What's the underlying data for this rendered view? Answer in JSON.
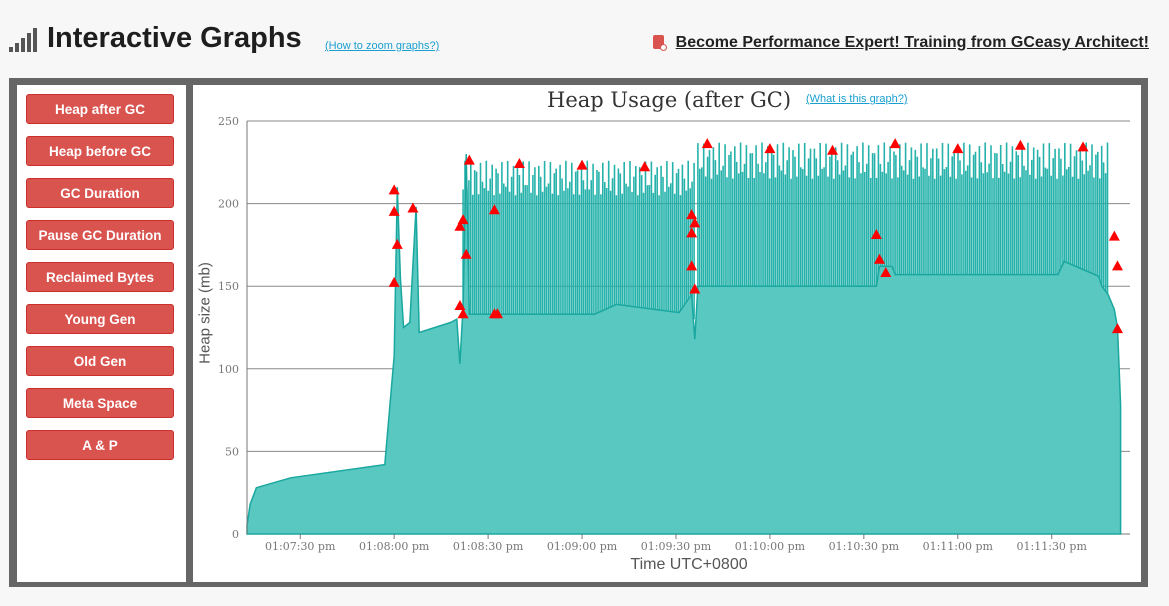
{
  "header": {
    "title": "Interactive Graphs",
    "zoom_link": "(How to zoom graphs?)",
    "promo_text": "Become Performance Expert! Training from GCeasy Architect!"
  },
  "sidebar": {
    "items": [
      {
        "label": "Heap after GC"
      },
      {
        "label": "Heap before GC"
      },
      {
        "label": "GC Duration"
      },
      {
        "label": "Pause GC Duration"
      },
      {
        "label": "Reclaimed Bytes"
      },
      {
        "label": "Young Gen"
      },
      {
        "label": "Old Gen"
      },
      {
        "label": "Meta Space"
      },
      {
        "label": "A & P"
      }
    ]
  },
  "chart": {
    "what_link": "(What is this graph?)"
  },
  "chart_data": {
    "type": "area",
    "title": "Heap Usage (after GC)",
    "xlabel": "Time UTC+0800",
    "ylabel": "Heap size (mb)",
    "xlim": [
      "01:07:13 pm",
      "01:11:55 pm"
    ],
    "ylim": [
      0,
      250
    ],
    "y_ticks": [
      0,
      50,
      100,
      150,
      200,
      250
    ],
    "x_ticks": [
      "01:07:30 pm",
      "01:08:00 pm",
      "01:08:30 pm",
      "01:09:00 pm",
      "01:09:30 pm",
      "01:10:00 pm",
      "01:10:30 pm",
      "01:11:00 pm",
      "01:11:30 pm"
    ],
    "grid": true,
    "series": [
      {
        "color": "#20b2aa",
        "points": [
          [
            "01:07:13 pm",
            5
          ],
          [
            "01:07:14 pm",
            18
          ],
          [
            "01:07:16 pm",
            28
          ],
          [
            "01:07:27 pm",
            34
          ],
          [
            "01:07:57 pm",
            42
          ],
          [
            "01:08:00 pm",
            108
          ],
          [
            "01:08:01 pm",
            210
          ],
          [
            "01:08:02 pm",
            155
          ],
          [
            "01:08:03 pm",
            125
          ],
          [
            "01:08:05 pm",
            128
          ],
          [
            "01:08:07 pm",
            198
          ],
          [
            "01:08:08 pm",
            122
          ],
          [
            "01:08:18 pm",
            128
          ],
          [
            "01:08:20 pm",
            130
          ],
          [
            "01:08:21 pm",
            103
          ],
          [
            "01:08:22 pm",
            138
          ],
          [
            "01:08:23 pm",
            230
          ],
          [
            "01:08:24 pm",
            133
          ],
          [
            "01:09:04 pm",
            133
          ],
          [
            "01:09:11 pm",
            139
          ],
          [
            "01:09:31 pm",
            134
          ],
          [
            "01:09:35 pm",
            145
          ],
          [
            "01:09:36 pm",
            118
          ],
          [
            "01:09:37 pm",
            150
          ],
          [
            "01:10:34 pm",
            150
          ],
          [
            "01:10:35 pm",
            162
          ],
          [
            "01:10:39 pm",
            162
          ],
          [
            "01:10:40 pm",
            157
          ],
          [
            "01:11:32 pm",
            157
          ],
          [
            "01:11:34 pm",
            165
          ],
          [
            "01:11:45 pm",
            156
          ],
          [
            "01:11:46 pm",
            150
          ],
          [
            "01:11:48 pm",
            145
          ],
          [
            "01:11:50 pm",
            136
          ],
          [
            "01:11:51 pm",
            125
          ],
          [
            "01:11:52 pm",
            78
          ]
        ],
        "peak_ranges": [
          {
            "from": "01:08:22 pm",
            "to": "01:09:36 pm",
            "min": 205,
            "max": 226
          },
          {
            "from": "01:09:37 pm",
            "to": "01:11:48 pm",
            "min": 215,
            "max": 237
          }
        ]
      }
    ],
    "markers": [
      [
        "01:08:00 pm",
        208
      ],
      [
        "01:08:00 pm",
        195
      ],
      [
        "01:08:01 pm",
        175
      ],
      [
        "01:08:00 pm",
        152
      ],
      [
        "01:08:06 pm",
        197
      ],
      [
        "01:08:21 pm",
        138
      ],
      [
        "01:08:21 pm",
        186
      ],
      [
        "01:08:22 pm",
        190
      ],
      [
        "01:08:23 pm",
        169
      ],
      [
        "01:08:22 pm",
        133
      ],
      [
        "01:08:32 pm",
        133
      ],
      [
        "01:08:33 pm",
        133
      ],
      [
        "01:08:32 pm",
        196
      ],
      [
        "01:09:35 pm",
        182
      ],
      [
        "01:09:36 pm",
        188
      ],
      [
        "01:09:35 pm",
        162
      ],
      [
        "01:09:36 pm",
        148
      ],
      [
        "01:09:35 pm",
        193
      ],
      [
        "01:10:34 pm",
        181
      ],
      [
        "01:10:35 pm",
        166
      ],
      [
        "01:10:37 pm",
        158
      ],
      [
        "01:11:50 pm",
        180
      ],
      [
        "01:11:51 pm",
        162
      ],
      [
        "01:11:51 pm",
        124
      ],
      [
        "01:08:24 pm",
        226
      ],
      [
        "01:08:40 pm",
        224
      ],
      [
        "01:09:00 pm",
        223
      ],
      [
        "01:09:20 pm",
        222
      ],
      [
        "01:09:40 pm",
        236
      ],
      [
        "01:10:00 pm",
        233
      ],
      [
        "01:10:20 pm",
        232
      ],
      [
        "01:10:40 pm",
        236
      ],
      [
        "01:11:00 pm",
        233
      ],
      [
        "01:11:20 pm",
        235
      ],
      [
        "01:11:40 pm",
        234
      ]
    ]
  }
}
